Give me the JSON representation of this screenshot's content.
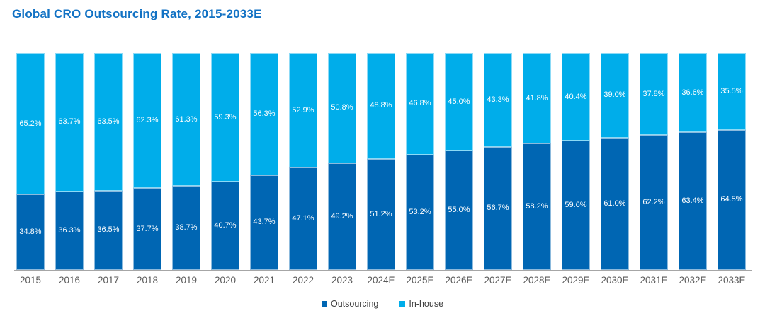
{
  "title": "Global CRO Outsourcing Rate, 2015-2033E",
  "colors": {
    "title": "#1272c4",
    "outsourcing": "#0066b3",
    "inhouse": "#00adea",
    "bar_label": "#ffffff",
    "axis_line": "#a6a6a6",
    "tick_label": "#595959",
    "legend_label": "#404040",
    "background": "#ffffff"
  },
  "chart_data": {
    "type": "bar",
    "stacked": true,
    "title": "Global CRO Outsourcing Rate, 2015-2033E",
    "unit": "%",
    "ylim": [
      0,
      100
    ],
    "grid": false,
    "legend_position": "bottom-center",
    "value_labels": "inside segments, white, one decimal",
    "categories": [
      "2015",
      "2016",
      "2017",
      "2018",
      "2019",
      "2020",
      "2021",
      "2022",
      "2023",
      "2024E",
      "2025E",
      "2026E",
      "2027E",
      "2028E",
      "2029E",
      "2030E",
      "2031E",
      "2032E",
      "2033E"
    ],
    "series": [
      {
        "name": "Outsourcing",
        "color": "#0066b3",
        "values": [
          34.8,
          36.3,
          36.5,
          37.7,
          38.7,
          40.7,
          43.7,
          47.1,
          49.2,
          51.2,
          53.2,
          55.0,
          56.7,
          58.2,
          59.6,
          61.0,
          62.2,
          63.4,
          64.5
        ]
      },
      {
        "name": "In-house",
        "color": "#00adea",
        "values": [
          65.2,
          63.7,
          63.5,
          62.3,
          61.3,
          59.3,
          56.3,
          52.9,
          50.8,
          48.8,
          46.8,
          45.0,
          43.3,
          41.8,
          40.4,
          39.0,
          37.8,
          36.6,
          35.5
        ]
      }
    ]
  }
}
